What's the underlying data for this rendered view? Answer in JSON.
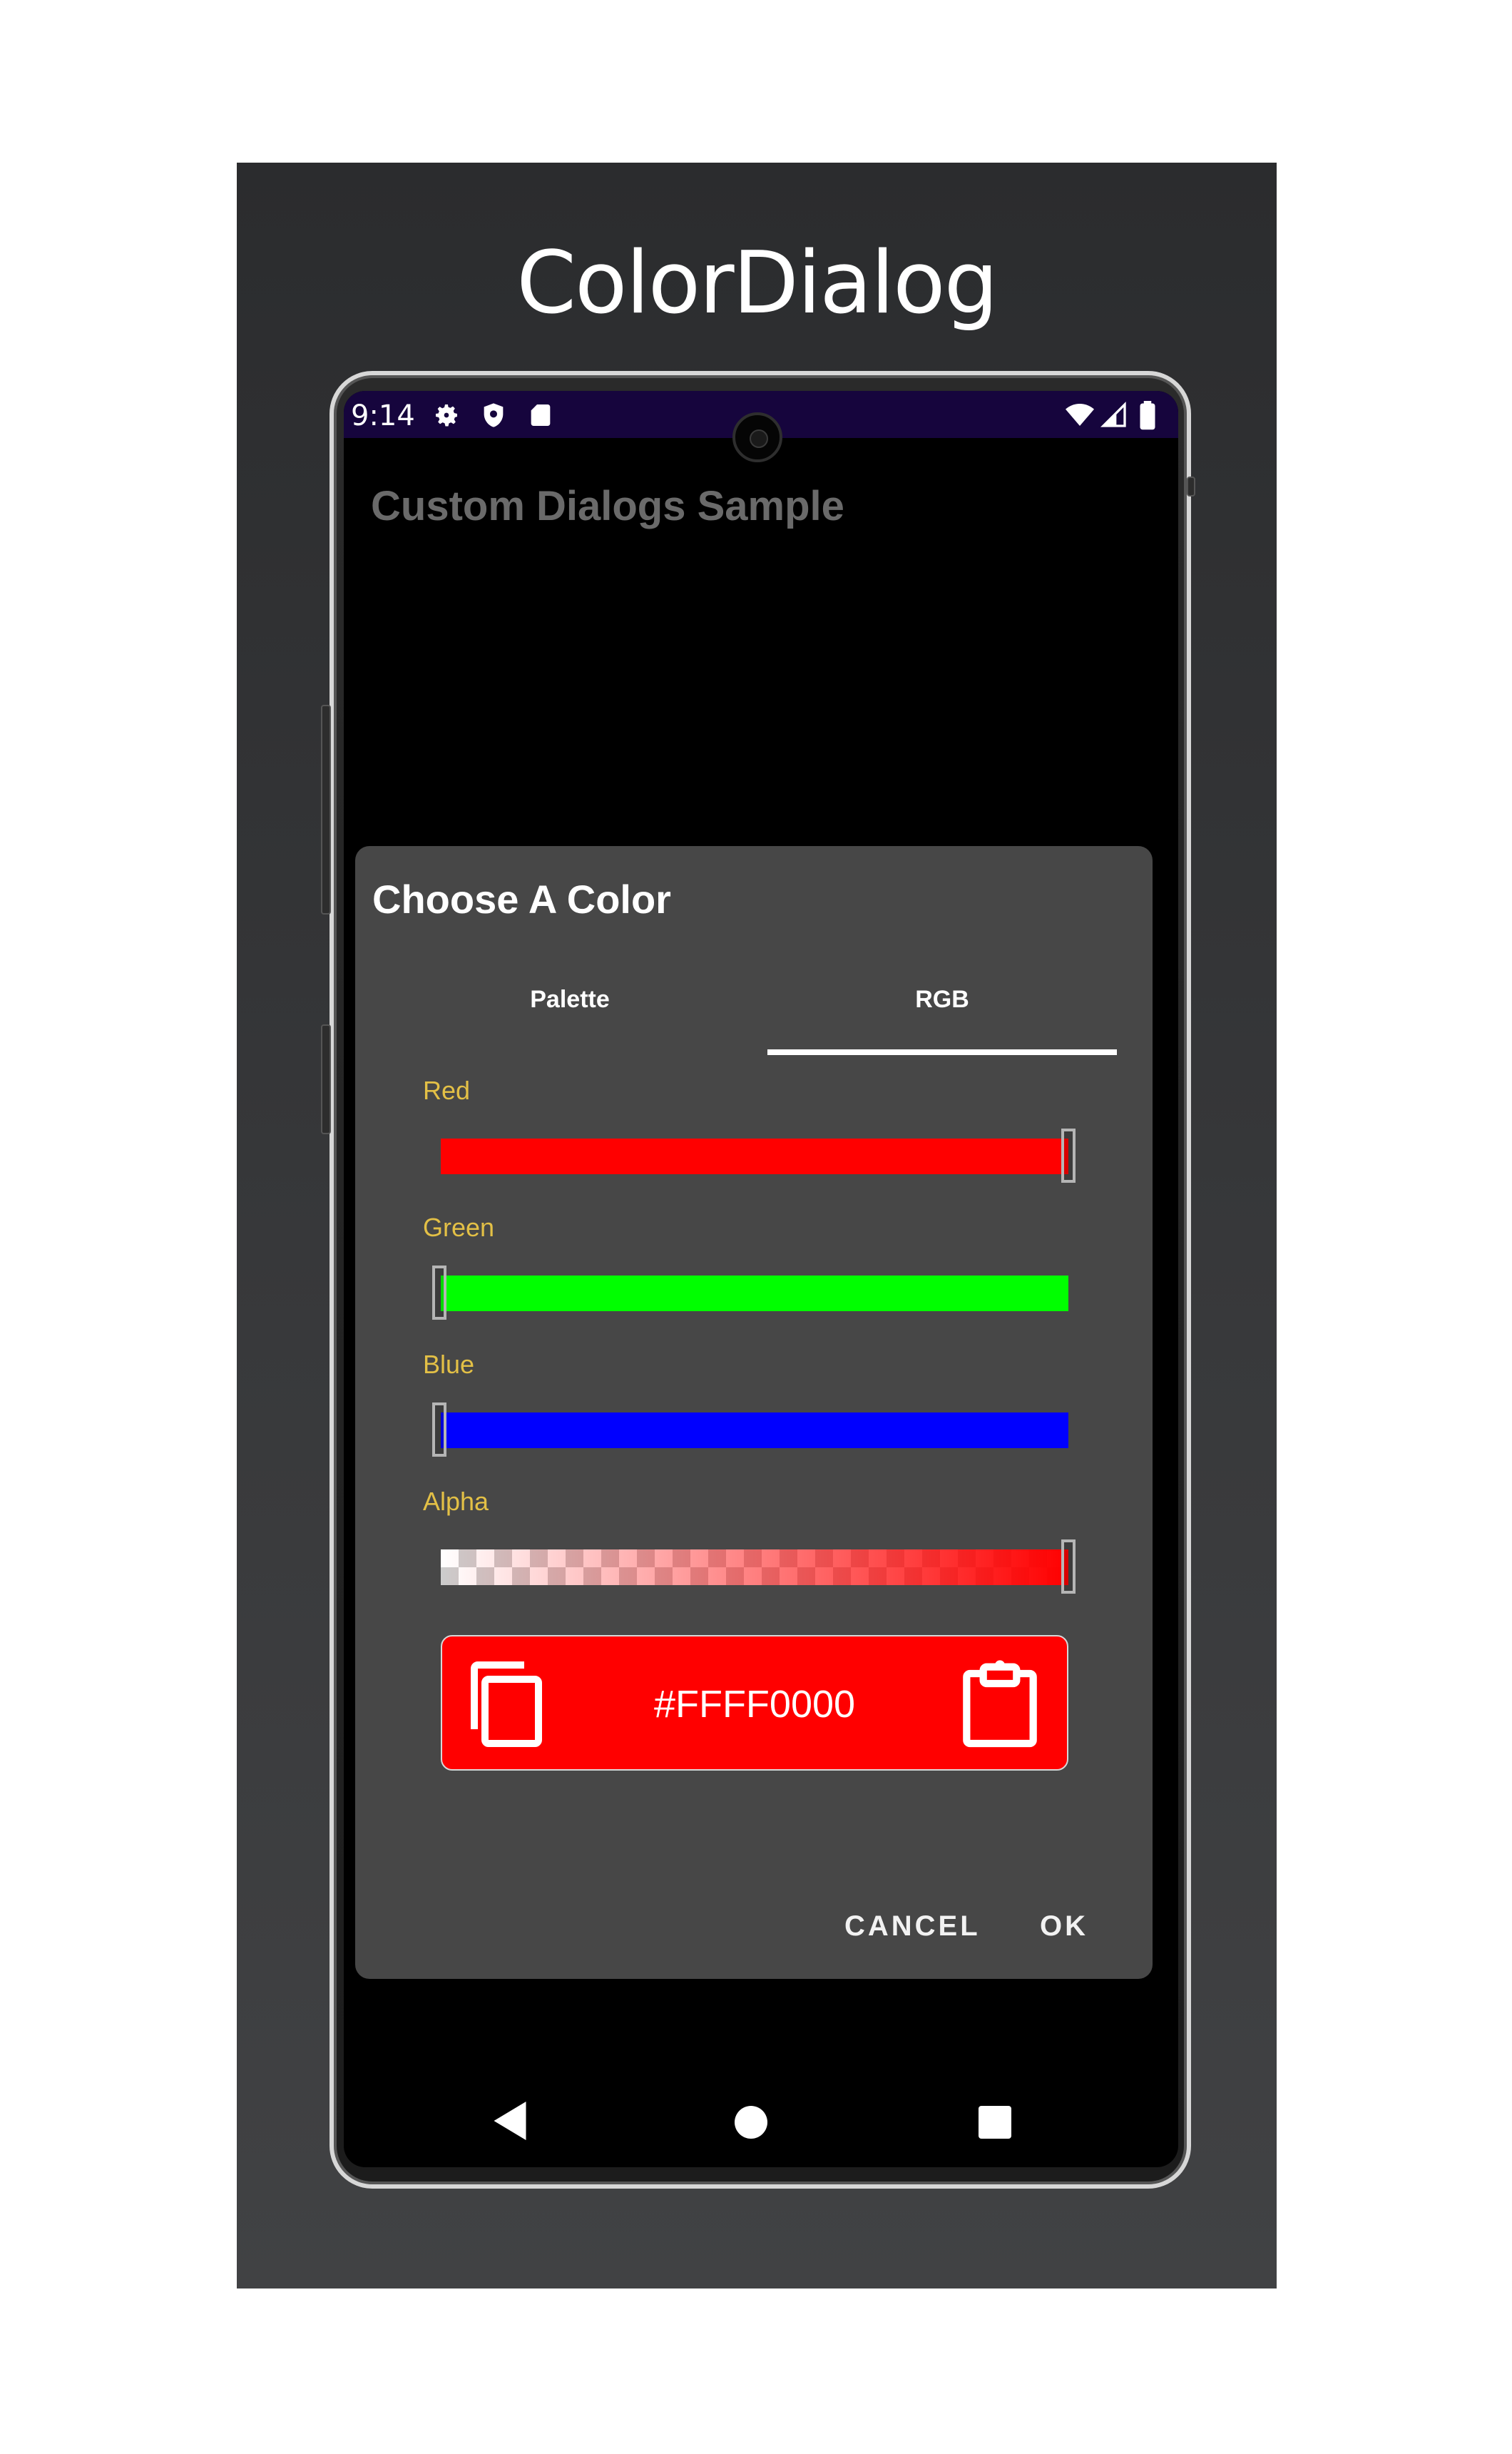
{
  "caption": "ColorDialog",
  "status": {
    "time": "9:14"
  },
  "app": {
    "title": "Custom Dialogs Sample"
  },
  "dialog": {
    "title": "Choose A Color",
    "tabs": [
      {
        "label": "Palette",
        "selected": false
      },
      {
        "label": "RGB",
        "selected": true
      }
    ],
    "sliders": [
      {
        "label": "Red",
        "value": 1.0,
        "color": "#ff0000"
      },
      {
        "label": "Green",
        "value": 0.0,
        "color": "#00ff00"
      },
      {
        "label": "Blue",
        "value": 0.0,
        "color": "#0000ff"
      },
      {
        "label": "Alpha",
        "value": 1.0,
        "color": "#ff0000"
      }
    ],
    "color_value": "#FFFF0000",
    "buttons": {
      "cancel": "CANCEL",
      "ok": "OK"
    }
  },
  "colors": {
    "statusbar": "#16053d",
    "dialog_bg": "#474747",
    "label": "#e3c046",
    "preview": "#ff0000"
  },
  "icons": [
    "settings-icon",
    "shield-icon",
    "sd-card-icon",
    "wifi-icon",
    "signal-icon",
    "battery-icon",
    "copy-icon",
    "paste-icon",
    "back-icon",
    "home-icon",
    "recents-icon"
  ]
}
